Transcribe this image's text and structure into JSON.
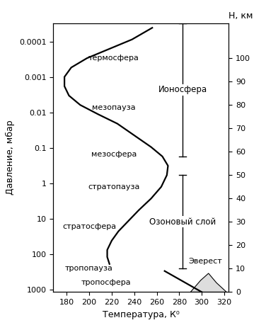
{
  "chart_data": {
    "type": "line",
    "xlabel": "Температура, К⁰",
    "ylabel": "Давление, мбар",
    "y2label": "H, км",
    "xlim": [
      168,
      324
    ],
    "xticks": [
      180,
      200,
      220,
      240,
      260,
      280,
      300,
      320
    ],
    "log": "y",
    "ylim": [
      1150,
      3e-05
    ],
    "yticks": [
      1000,
      100,
      10,
      1,
      0.1,
      0.01,
      0.001,
      0.0001
    ],
    "y2lim": [
      0,
      115
    ],
    "y2ticks": [
      0,
      10,
      20,
      30,
      40,
      50,
      60,
      70,
      80,
      90,
      100
    ],
    "grid": false,
    "series": [
      {
        "axis": "y2",
        "color": "#000000",
        "line_style": "solid",
        "x": [
          300,
          267,
          null,
          218,
          216,
          216,
          220,
          226,
          234,
          244,
          255,
          264,
          269,
          270,
          265,
          255,
          240,
          225,
          208,
          192,
          182,
          178,
          178,
          184,
          198,
          218,
          238,
          256
        ],
        "values": [
          0,
          9,
          null,
          12,
          15,
          18,
          22,
          26,
          30,
          35,
          40,
          45,
          50,
          54,
          58,
          62,
          67,
          72,
          76,
          80,
          84,
          88,
          92,
          96,
          100,
          104,
          108,
          113
        ]
      }
    ],
    "layer_labels": [
      "термосфера",
      "мезопауза",
      "мезосфера",
      "стратопауза",
      "стратосфера",
      "тропопауза",
      "тропосфера"
    ],
    "regions": [
      {
        "label": "Ионосфера",
        "range": [
          58,
          115
        ]
      },
      {
        "label": "Озоновый слой",
        "range": [
          10,
          50
        ]
      }
    ],
    "annotations": [
      "Эверест"
    ]
  }
}
